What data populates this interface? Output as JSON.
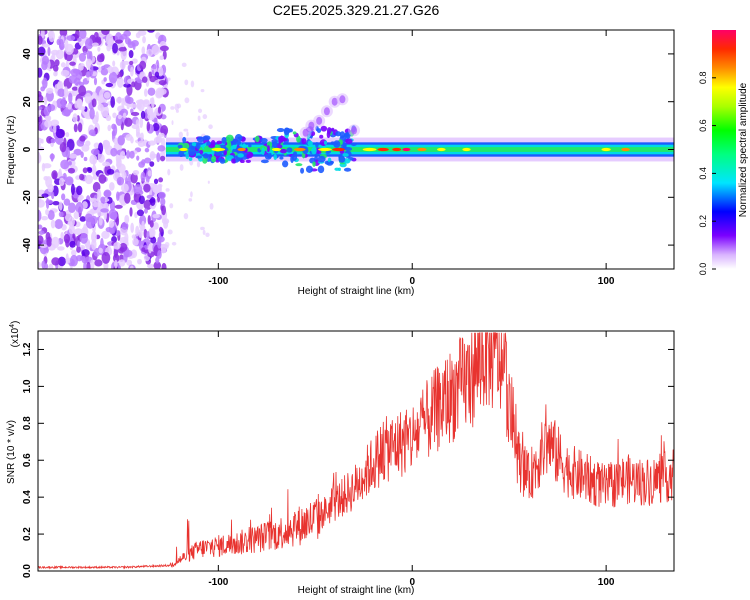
{
  "figure_title": "C2E5.2025.329.21.27.G26",
  "chart_data": [
    {
      "type": "heatmap",
      "panel": "top",
      "title": "C2E5.2025.329.21.27.G26",
      "xlabel": "Height of straight line (km)",
      "ylabel": "Frequency (Hz)",
      "xlim": [
        -193,
        135
      ],
      "ylim": [
        -50,
        50
      ],
      "xticks": [
        -100,
        0,
        100
      ],
      "yticks": [
        -40,
        -20,
        0,
        20,
        40
      ],
      "colorbar": {
        "label": "Normalized spectral amplitude",
        "range": [
          0,
          1
        ],
        "ticks": [
          "0.0",
          "0.2",
          "0.4",
          "0.6",
          "0.8"
        ]
      },
      "features": {
        "noise_region_x": [
          -193,
          -127
        ],
        "signal_band_center_hz": 0,
        "signal_band_halfwidth_hz": 3,
        "broadening_region_x": [
          -70,
          -30
        ],
        "max_offset_hz": 20
      }
    },
    {
      "type": "line",
      "panel": "bottom",
      "xlabel": "Height of straight line (km)",
      "ylabel": "SNR (10 * v/v)",
      "y_multiplier": "(x10",
      "y_multiplier_exp": "4",
      "xlim": [
        -193,
        135
      ],
      "ylim": [
        0,
        1.3
      ],
      "xticks": [
        -100,
        0,
        100
      ],
      "yticks": [
        "0.0",
        "0.2",
        "0.4",
        "0.6",
        "0.8",
        "1.0",
        "1.2"
      ],
      "series": [
        {
          "name": "SNR",
          "color": "#e8332f",
          "envelope_x": [
            -193,
            -150,
            -125,
            -110,
            -90,
            -70,
            -50,
            -30,
            -15,
            0,
            15,
            30,
            38,
            45,
            48,
            55,
            60,
            70,
            80,
            90,
            100,
            110,
            120,
            135
          ],
          "envelope_y": [
            0.02,
            0.02,
            0.03,
            0.12,
            0.15,
            0.2,
            0.28,
            0.45,
            0.65,
            0.72,
            0.9,
            1.05,
            1.2,
            1.15,
            1.05,
            0.6,
            0.5,
            0.7,
            0.55,
            0.5,
            0.45,
            0.5,
            0.48,
            0.52
          ]
        }
      ]
    }
  ]
}
